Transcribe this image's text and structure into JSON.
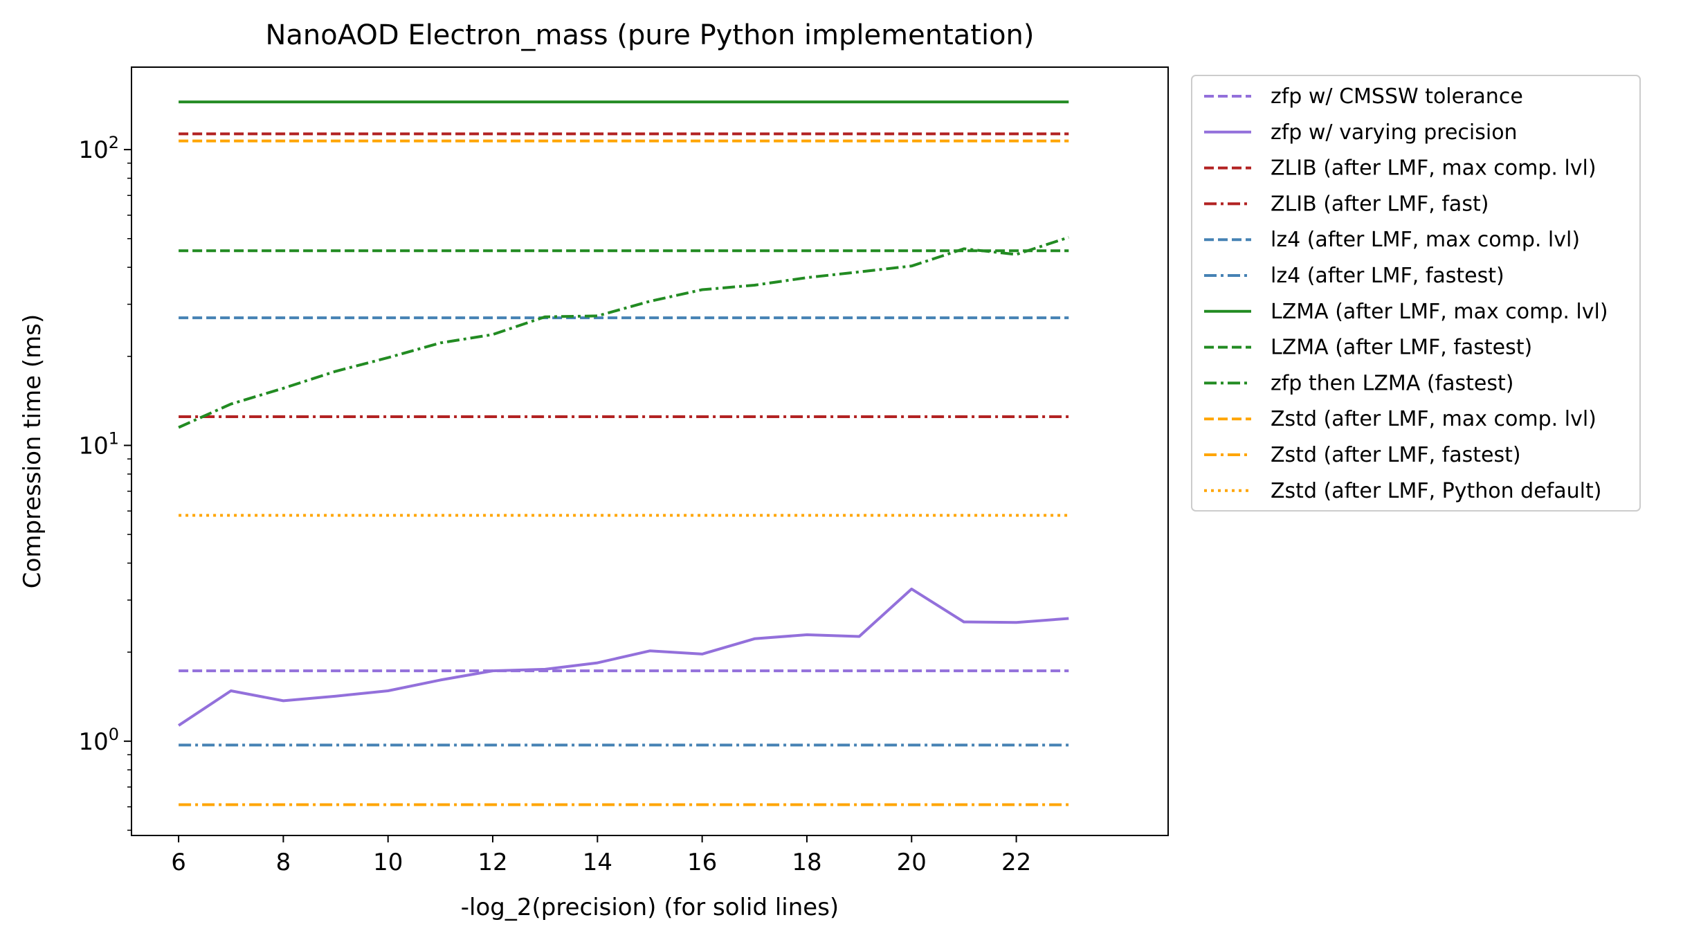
{
  "chart_data": {
    "type": "line",
    "title": "NanoAOD Electron_mass (pure Python implementation)",
    "xlabel": "-log_2(precision) (for solid lines)",
    "ylabel": "Compression time (ms)",
    "xlim": [
      5.1,
      24.9
    ],
    "ylim": [
      0.48,
      190
    ],
    "yscale": "log",
    "grid": false,
    "legend_position": "outside right",
    "x_ticks": [
      6,
      8,
      10,
      12,
      14,
      16,
      18,
      20,
      22
    ],
    "x_tick_labels": [
      "6",
      "8",
      "10",
      "12",
      "14",
      "16",
      "18",
      "20",
      "22"
    ],
    "y_ticks": [
      1,
      10,
      100
    ],
    "y_tick_labels": [
      {
        "base": "10",
        "exp": "0"
      },
      {
        "base": "10",
        "exp": "1"
      },
      {
        "base": "10",
        "exp": "2"
      }
    ],
    "x": [
      6,
      7,
      8,
      9,
      10,
      11,
      12,
      13,
      14,
      15,
      16,
      17,
      18,
      19,
      20,
      21,
      22,
      23
    ],
    "series": [
      {
        "name": "zfp w/ CMSSW tolerance",
        "color": "#9370db",
        "dash": "dashed",
        "constant": 1.73
      },
      {
        "name": "zfp w/ varying precision",
        "color": "#9370db",
        "dash": "solid",
        "values": [
          1.13,
          1.48,
          1.37,
          1.42,
          1.48,
          1.61,
          1.73,
          1.75,
          1.84,
          2.02,
          1.97,
          2.22,
          2.29,
          2.26,
          3.27,
          2.53,
          2.52,
          2.6
        ]
      },
      {
        "name": "ZLIB (after LMF, max comp. lvl)",
        "color": "#b22222",
        "dash": "dashed",
        "constant": 113
      },
      {
        "name": "ZLIB (after LMF, fast)",
        "color": "#b22222",
        "dash": "dashdot",
        "constant": 12.5
      },
      {
        "name": "lz4 (after LMF, max comp. lvl)",
        "color": "#4682b4",
        "dash": "dashed",
        "constant": 27
      },
      {
        "name": "lz4 (after LMF, fastest)",
        "color": "#4682b4",
        "dash": "dashdot",
        "constant": 0.97
      },
      {
        "name": "LZMA (after LMF, max comp. lvl)",
        "color": "#228b22",
        "dash": "solid",
        "constant": 145
      },
      {
        "name": "LZMA (after LMF, fastest)",
        "color": "#228b22",
        "dash": "dashed",
        "constant": 45.5
      },
      {
        "name": "zfp then LZMA (fastest)",
        "color": "#228b22",
        "dash": "dashdot",
        "values": [
          11.5,
          13.8,
          15.6,
          17.8,
          19.8,
          22.2,
          23.7,
          27.2,
          27.4,
          30.7,
          33.6,
          34.8,
          36.9,
          38.6,
          40.4,
          46.2,
          44.2,
          50.5
        ]
      },
      {
        "name": "Zstd (after LMF, max comp. lvl)",
        "color": "#ffa500",
        "dash": "dashed",
        "constant": 107
      },
      {
        "name": "Zstd (after LMF, fastest)",
        "color": "#ffa500",
        "dash": "dashdot",
        "constant": 0.61
      },
      {
        "name": "Zstd (after LMF, Python default)",
        "color": "#ffa500",
        "dash": "dotted",
        "constant": 5.8
      }
    ]
  }
}
